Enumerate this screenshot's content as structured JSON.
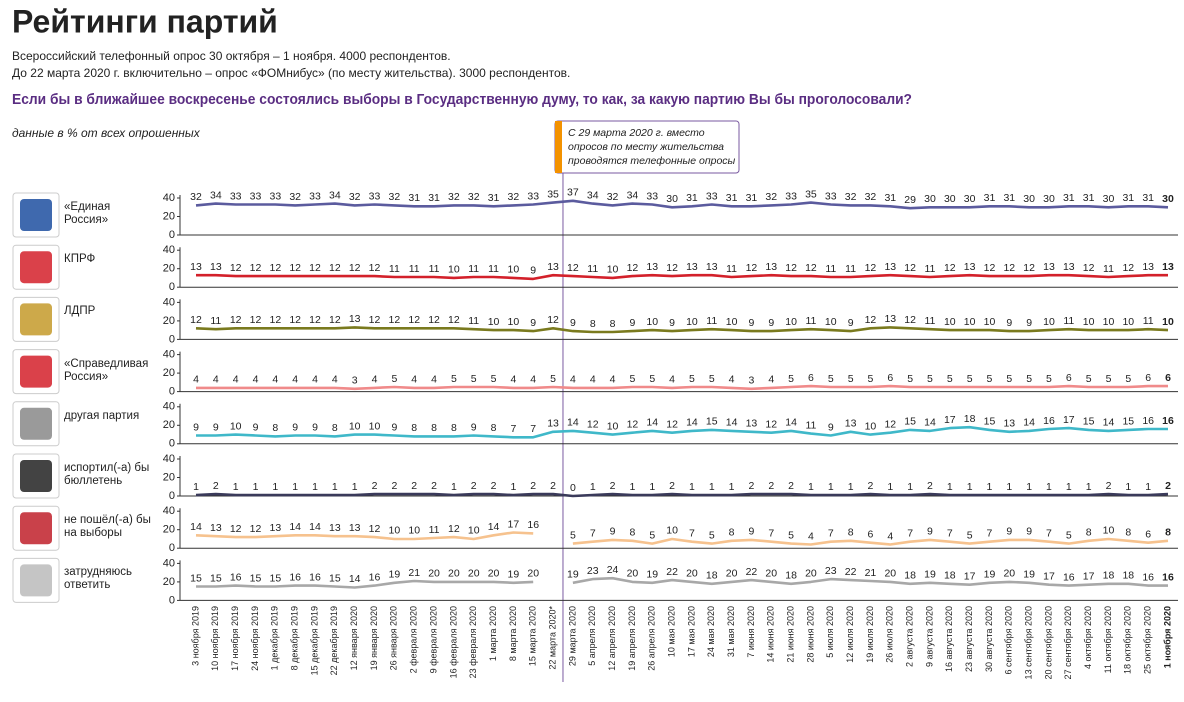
{
  "chart_data": {
    "type": "line",
    "title": "Рейтинги партий",
    "subtitle": [
      "Всероссийский телефонный опрос 30 октября – 1 ноября. 4000 респондентов.",
      "До 22 марта 2020 г. включительно – опрос «ФОМнибус» (по месту жительства). 3000 респондентов."
    ],
    "question": "Если бы в ближайшее воскресенье состоялись выборы в Государственную думу, то как, за какую партию Вы бы проголосовали?",
    "ylabel": "данные в % от всех опрошенных",
    "annotation": [
      "С 29 марта 2020 г. вместо",
      "опросов по месту жительства",
      "проводятся телефонные опросы"
    ],
    "categories": [
      "3 ноября 2019",
      "10 ноября 2019",
      "17 ноября 2019",
      "24 ноября 2019",
      "1 декабря 2019",
      "8 декабря 2019",
      "15 декабря 2019",
      "22 декабря 2019",
      "12 января 2020",
      "19 января 2020",
      "26 января 2020",
      "2 февраля 2020",
      "9 февраля 2020",
      "16 февраля 2020",
      "23 февраля 2020",
      "1 марта 2020",
      "8 марта 2020",
      "15 марта 2020",
      "22 марта 2020*",
      "29 марта 2020",
      "5 апреля 2020",
      "12 апреля 2020",
      "19 апреля 2020",
      "26 апреля 2020",
      "10 мая 2020",
      "17 мая 2020",
      "24 мая 2020",
      "31 мая 2020",
      "7 июня 2020",
      "14 июня 2020",
      "21 июня 2020",
      "28 июня 2020",
      "5 июля 2020",
      "12 июля 2020",
      "19 июля 2020",
      "26 июля 2020",
      "2 августа 2020",
      "9 августа 2020",
      "16 августа 2020",
      "23 августа 2020",
      "30 августа 2020",
      "6 сентября 2020",
      "13 сентября 2020",
      "20 сентября 2020",
      "27 сентября 2020",
      "4 октября 2020",
      "11 октября 2020",
      "18 октября 2020",
      "25 октября 2020",
      "1 ноября 2020"
    ],
    "ylim": [
      0,
      40
    ],
    "yticks": [
      0,
      20,
      40
    ],
    "series": [
      {
        "name": "«Единая Россия»",
        "color": "#5b5b9e",
        "values": [
          32,
          34,
          33,
          33,
          33,
          32,
          33,
          34,
          32,
          33,
          32,
          31,
          31,
          32,
          32,
          31,
          32,
          33,
          35,
          37,
          34,
          32,
          34,
          33,
          30,
          31,
          33,
          31,
          31,
          32,
          33,
          35,
          33,
          32,
          32,
          31,
          29,
          30,
          30,
          30,
          31,
          31,
          30,
          30,
          31,
          31,
          30,
          31,
          31,
          30
        ]
      },
      {
        "name": "КПРФ",
        "color": "#d3202a",
        "values": [
          13,
          13,
          12,
          12,
          12,
          12,
          12,
          12,
          12,
          12,
          11,
          11,
          11,
          10,
          11,
          11,
          10,
          9,
          13,
          12,
          11,
          10,
          12,
          13,
          12,
          13,
          13,
          11,
          12,
          13,
          12,
          12,
          11,
          11,
          12,
          13,
          12,
          11,
          12,
          13,
          12,
          12,
          12,
          13,
          13,
          12,
          11,
          12,
          13,
          13
        ]
      },
      {
        "name": "ЛДПР",
        "color": "#7a7a1e",
        "values": [
          12,
          11,
          12,
          12,
          12,
          12,
          12,
          12,
          13,
          12,
          12,
          12,
          12,
          12,
          11,
          10,
          10,
          9,
          12,
          9,
          8,
          8,
          9,
          10,
          9,
          10,
          11,
          10,
          9,
          9,
          10,
          11,
          10,
          9,
          12,
          13,
          12,
          11,
          10,
          10,
          10,
          9,
          9,
          10,
          11,
          10,
          10,
          10,
          11,
          10
        ]
      },
      {
        "name": "«Справедливая Россия»",
        "color": "#f08a8a",
        "values": [
          4,
          4,
          4,
          4,
          4,
          4,
          4,
          4,
          3,
          4,
          5,
          4,
          4,
          5,
          5,
          5,
          4,
          4,
          5,
          4,
          4,
          4,
          5,
          5,
          4,
          5,
          5,
          4,
          3,
          4,
          5,
          6,
          5,
          5,
          5,
          6,
          5,
          5,
          5,
          5,
          5,
          5,
          5,
          5,
          6,
          5,
          5,
          5,
          6,
          6
        ]
      },
      {
        "name": "другая партия",
        "color": "#3fb8c9",
        "values": [
          9,
          9,
          10,
          9,
          8,
          9,
          9,
          8,
          10,
          10,
          9,
          8,
          8,
          8,
          9,
          8,
          7,
          7,
          13,
          14,
          12,
          10,
          12,
          14,
          12,
          14,
          15,
          14,
          13,
          12,
          14,
          11,
          9,
          13,
          10,
          12,
          15,
          14,
          17,
          18,
          15,
          13,
          14,
          16,
          17,
          15,
          14,
          15,
          16,
          16
        ]
      },
      {
        "name": "испортил(-а) бы бюллетень",
        "color": "#3a3a5a",
        "values": [
          1,
          2,
          1,
          1,
          1,
          1,
          1,
          1,
          1,
          2,
          2,
          2,
          2,
          1,
          2,
          2,
          1,
          2,
          2,
          0,
          1,
          2,
          1,
          1,
          2,
          1,
          1,
          1,
          2,
          2,
          2,
          1,
          1,
          1,
          2,
          1,
          1,
          2,
          1,
          1,
          1,
          1,
          1,
          1,
          1,
          1,
          2,
          1,
          1,
          2
        ]
      },
      {
        "name": "не пошёл(-а) бы на выборы",
        "color": "#f6c28e",
        "values": [
          14,
          13,
          12,
          12,
          13,
          14,
          14,
          13,
          13,
          12,
          10,
          10,
          11,
          12,
          10,
          14,
          17,
          16,
          null,
          5,
          7,
          9,
          8,
          5,
          10,
          7,
          5,
          8,
          9,
          7,
          5,
          4,
          7,
          8,
          6,
          4,
          7,
          9,
          7,
          5,
          7,
          9,
          9,
          7,
          5,
          8,
          10,
          8,
          6,
          8
        ]
      },
      {
        "name": "затрудняюсь ответить",
        "color": "#a8a8a8",
        "values": [
          15,
          15,
          16,
          15,
          15,
          16,
          16,
          15,
          14,
          16,
          19,
          21,
          20,
          20,
          20,
          20,
          19,
          20,
          null,
          19,
          23,
          24,
          20,
          19,
          22,
          20,
          18,
          20,
          22,
          20,
          18,
          20,
          23,
          22,
          21,
          20,
          18,
          19,
          18,
          17,
          19,
          20,
          19,
          17,
          16,
          17,
          18,
          18,
          16,
          16
        ]
      }
    ]
  }
}
